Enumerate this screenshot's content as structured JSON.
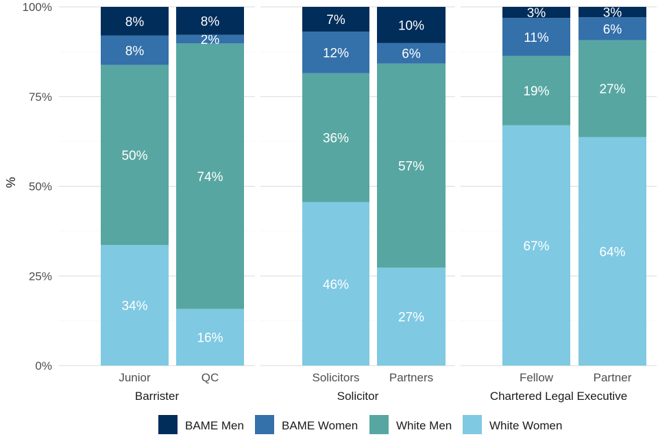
{
  "chart_data": {
    "type": "bar",
    "stacked": true,
    "ylabel": "%",
    "ylim": [
      0,
      100
    ],
    "yticks": [
      0,
      25,
      50,
      75,
      100
    ],
    "ytick_labels": [
      "0%",
      "25%",
      "50%",
      "75%",
      "100%"
    ],
    "series": [
      {
        "name": "White Women",
        "color": "#7fc9e2"
      },
      {
        "name": "White Men",
        "color": "#58a6a1"
      },
      {
        "name": "BAME Women",
        "color": "#3470aa"
      },
      {
        "name": "BAME Men",
        "color": "#012d5a"
      }
    ],
    "legend_order": [
      "BAME Men",
      "BAME Women",
      "White Men",
      "White Women"
    ],
    "legend_position": "bottom",
    "facets": [
      {
        "name": "Barrister",
        "bars": [
          {
            "category": "Junior",
            "values": [
              33.6,
              50.2,
              8.2,
              8.0
            ],
            "labels": [
              "34%",
              "50%",
              "8%",
              "8%"
            ]
          },
          {
            "category": "QC",
            "values": [
              15.8,
              74.0,
              2.4,
              7.8
            ],
            "labels": [
              "16%",
              "74%",
              "2%",
              "8%"
            ]
          }
        ]
      },
      {
        "name": "Solicitor",
        "bars": [
          {
            "category": "Solicitors",
            "values": [
              45.6,
              35.9,
              11.6,
              6.9
            ],
            "labels": [
              "46%",
              "36%",
              "12%",
              "7%"
            ]
          },
          {
            "category": "Partners",
            "values": [
              27.3,
              56.9,
              5.7,
              10.1
            ],
            "labels": [
              "27%",
              "57%",
              "6%",
              "10%"
            ]
          }
        ]
      },
      {
        "name": "Chartered Legal Executive",
        "bars": [
          {
            "category": "Fellow",
            "values": [
              67.0,
              19.3,
              10.6,
              3.1
            ],
            "labels": [
              "67%",
              "19%",
              "11%",
              "3%"
            ]
          },
          {
            "category": "Partner",
            "values": [
              63.7,
              27.0,
              6.4,
              2.9
            ],
            "labels": [
              "64%",
              "27%",
              "6%",
              "3%"
            ]
          }
        ]
      }
    ]
  }
}
